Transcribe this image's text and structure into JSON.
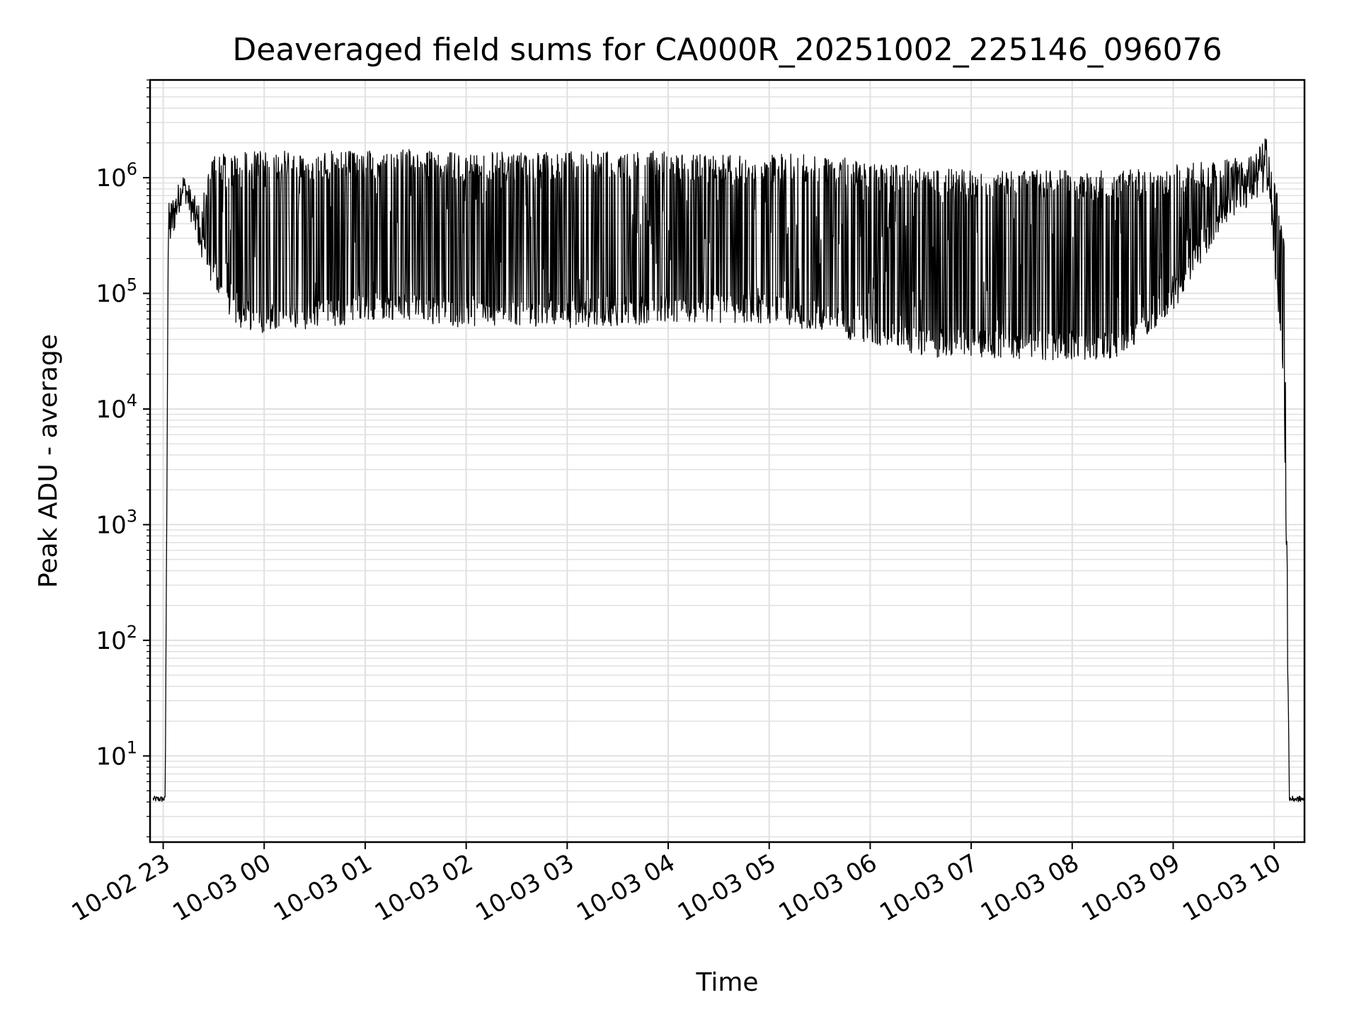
{
  "chart_data": {
    "type": "line",
    "title": "Deaveraged field sums for CA000R_20251002_225146_096076",
    "xlabel": "Time",
    "ylabel": "Peak ADU - average",
    "yscale": "log",
    "ylim": [
      1.8,
      7000000
    ],
    "xlim_hours_from_2025_10_02_23_00": [
      -0.13,
      11.3
    ],
    "grid": true,
    "line_color": "#000000",
    "grid_color": "#e0e0e0",
    "x_ticks": [
      {
        "label": "10-02 23",
        "hour": 0
      },
      {
        "label": "10-03 00",
        "hour": 1
      },
      {
        "label": "10-03 01",
        "hour": 2
      },
      {
        "label": "10-03 02",
        "hour": 3
      },
      {
        "label": "10-03 03",
        "hour": 4
      },
      {
        "label": "10-03 04",
        "hour": 5
      },
      {
        "label": "10-03 05",
        "hour": 6
      },
      {
        "label": "10-03 06",
        "hour": 7
      },
      {
        "label": "10-03 07",
        "hour": 8
      },
      {
        "label": "10-03 08",
        "hour": 9
      },
      {
        "label": "10-03 09",
        "hour": 10
      },
      {
        "label": "10-03 10",
        "hour": 11
      }
    ],
    "y_ticks": [
      {
        "base": "10",
        "exp": "1",
        "value": 10
      },
      {
        "base": "10",
        "exp": "2",
        "value": 100
      },
      {
        "base": "10",
        "exp": "3",
        "value": 1000
      },
      {
        "base": "10",
        "exp": "4",
        "value": 10000
      },
      {
        "base": "10",
        "exp": "5",
        "value": 100000
      },
      {
        "base": "10",
        "exp": "6",
        "value": 1000000
      }
    ],
    "series": [
      {
        "name": "field sums",
        "envelope": [
          {
            "hour": -0.1,
            "low": 4,
            "high": 4.5
          },
          {
            "hour": 0.02,
            "low": 4,
            "high": 4.5
          },
          {
            "hour": 0.05,
            "low": 200000,
            "high": 600000
          },
          {
            "hour": 0.2,
            "low": 700000,
            "high": 1100000
          },
          {
            "hour": 0.35,
            "low": 250000,
            "high": 600000
          },
          {
            "hour": 0.5,
            "low": 100000,
            "high": 1600000
          },
          {
            "hour": 0.75,
            "low": 50000,
            "high": 1700000
          },
          {
            "hour": 1.0,
            "low": 45000,
            "high": 1700000
          },
          {
            "hour": 1.5,
            "low": 50000,
            "high": 1700000
          },
          {
            "hour": 2.0,
            "low": 55000,
            "high": 1700000
          },
          {
            "hour": 2.2,
            "low": 60000,
            "high": 1800000
          },
          {
            "hour": 3.0,
            "low": 50000,
            "high": 1650000
          },
          {
            "hour": 4.0,
            "low": 50000,
            "high": 1700000
          },
          {
            "hour": 5.0,
            "low": 55000,
            "high": 1700000
          },
          {
            "hour": 6.0,
            "low": 55000,
            "high": 1600000
          },
          {
            "hour": 6.6,
            "low": 45000,
            "high": 1600000
          },
          {
            "hour": 7.0,
            "low": 35000,
            "high": 1350000
          },
          {
            "hour": 7.5,
            "low": 28000,
            "high": 1250000
          },
          {
            "hour": 8.0,
            "low": 28000,
            "high": 1200000
          },
          {
            "hour": 9.0,
            "low": 26000,
            "high": 1150000
          },
          {
            "hour": 9.5,
            "low": 28000,
            "high": 1150000
          },
          {
            "hour": 10.0,
            "low": 70000,
            "high": 1300000
          },
          {
            "hour": 10.5,
            "low": 400000,
            "high": 1500000
          },
          {
            "hour": 10.8,
            "low": 600000,
            "high": 1600000
          },
          {
            "hour": 10.95,
            "low": 800000,
            "high": 2600000
          },
          {
            "hour": 11.1,
            "low": 10000,
            "high": 300000
          },
          {
            "hour": 11.15,
            "low": 4,
            "high": 4.5
          },
          {
            "hour": 11.3,
            "low": 4,
            "high": 4.5
          }
        ]
      }
    ]
  }
}
